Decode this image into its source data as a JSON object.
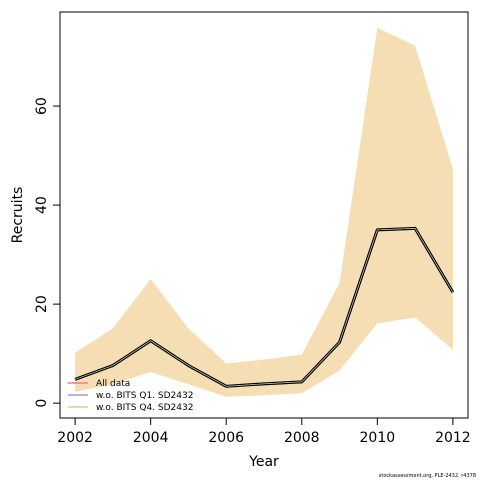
{
  "chart_data": {
    "type": "line",
    "xlabel": "Year",
    "ylabel": "Recruits",
    "xlim": [
      2001.6,
      2012.4
    ],
    "ylim": [
      -3,
      79
    ],
    "x_ticks": [
      2002,
      2004,
      2006,
      2008,
      2010,
      2012
    ],
    "y_ticks": [
      0,
      20,
      40,
      60
    ],
    "x": [
      2002,
      2003,
      2004,
      2005,
      2006,
      2007,
      2008,
      2009,
      2010,
      2011,
      2012
    ],
    "band": {
      "lower": [
        2.3,
        3.8,
        6.3,
        3.8,
        1.3,
        1.6,
        2.0,
        6.6,
        16.1,
        17.3,
        10.8
      ],
      "upper": [
        10.2,
        15.1,
        25.1,
        15.1,
        8.0,
        8.8,
        9.8,
        24.3,
        75.8,
        72.2,
        47.3
      ]
    },
    "series": [
      {
        "name": "All data",
        "color": "#f08080",
        "values": [
          4.8,
          7.6,
          12.6,
          7.6,
          3.4,
          3.9,
          4.3,
          12.3,
          35.0,
          35.3,
          22.4
        ]
      },
      {
        "name": "w.o. BITS Q1. SD2432",
        "color": "#b68ee0",
        "values": [
          4.8,
          7.6,
          12.6,
          7.6,
          3.4,
          3.9,
          4.3,
          12.3,
          35.0,
          35.3,
          22.4
        ]
      },
      {
        "name": "w.o. BITS Q4. SD2432",
        "color": "#b2e08f",
        "values": [
          4.8,
          7.6,
          12.6,
          7.6,
          3.4,
          3.9,
          4.3,
          12.3,
          35.0,
          35.3,
          22.4
        ]
      }
    ],
    "legend_position": "bottom-left",
    "grid": false,
    "band_color": "#f5deb3",
    "line_color": "#000000"
  },
  "footer": {
    "credit": "stockassessment.org, PLE-2432, r4378"
  }
}
